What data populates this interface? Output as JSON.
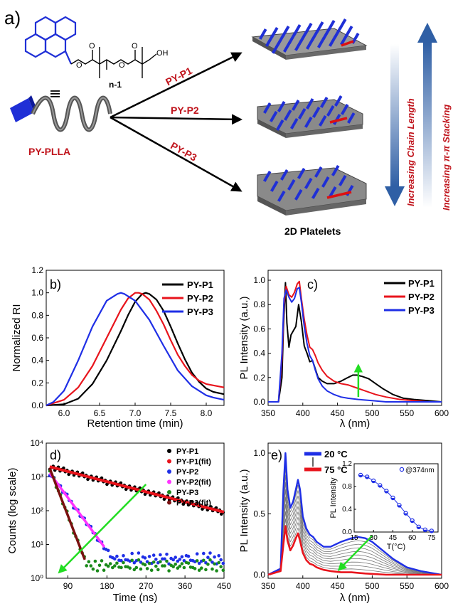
{
  "panel_a": {
    "label": "a)",
    "molecule_sub": "n-1",
    "equiv_mark": "|||",
    "polymer_name": "PY-PLLA",
    "routes": [
      "PY-P1",
      "PY-P2",
      "PY-P3"
    ],
    "caption": "2D Platelets",
    "arrow_down_label": "Increasing Chain Length",
    "arrow_up_label": "Increasing π-π Stacking",
    "colors": {
      "pyrene": "#1f2fd6",
      "accent_red": "#c0141c",
      "platelet": "#8a8a8a"
    }
  },
  "chart_data": [
    {
      "panel": "b)",
      "type": "line",
      "xlabel": "Retention time (min)",
      "ylabel": "Normalized RI",
      "xlim": [
        5.75,
        8.25
      ],
      "ylim": [
        0,
        1.2
      ],
      "xticks": [
        "6.0",
        "6.5",
        "7.0",
        "7.5",
        "8.0"
      ],
      "yticks": [
        "0.0",
        "0.2",
        "0.4",
        "0.6",
        "0.8",
        "1.0",
        "1.2"
      ],
      "legend": "top-right",
      "series": [
        {
          "name": "PY-P1",
          "color": "#000000",
          "x": [
            5.75,
            6.0,
            6.2,
            6.4,
            6.6,
            6.8,
            6.9,
            7.0,
            7.1,
            7.15,
            7.2,
            7.3,
            7.4,
            7.5,
            7.6,
            7.7,
            7.8,
            7.9,
            8.0,
            8.1,
            8.25
          ],
          "y": [
            0.0,
            0.01,
            0.06,
            0.19,
            0.4,
            0.66,
            0.8,
            0.92,
            0.99,
            1.0,
            0.99,
            0.94,
            0.84,
            0.7,
            0.55,
            0.41,
            0.29,
            0.21,
            0.15,
            0.12,
            0.1
          ]
        },
        {
          "name": "PY-P2",
          "color": "#e8141c",
          "x": [
            5.75,
            5.9,
            6.0,
            6.2,
            6.4,
            6.6,
            6.8,
            6.9,
            7.0,
            7.05,
            7.1,
            7.2,
            7.3,
            7.4,
            7.5,
            7.6,
            7.7,
            7.8,
            7.9,
            8.0,
            8.25
          ],
          "y": [
            0.0,
            0.03,
            0.05,
            0.16,
            0.35,
            0.6,
            0.85,
            0.95,
            1.0,
            1.0,
            0.99,
            0.94,
            0.84,
            0.72,
            0.58,
            0.45,
            0.35,
            0.27,
            0.22,
            0.19,
            0.16
          ]
        },
        {
          "name": "PY-P3",
          "color": "#1f2fe6",
          "x": [
            5.75,
            5.85,
            6.0,
            6.2,
            6.4,
            6.6,
            6.75,
            6.8,
            6.85,
            7.0,
            7.2,
            7.4,
            7.6,
            7.8,
            8.0,
            8.1,
            8.25
          ],
          "y": [
            0.0,
            0.03,
            0.13,
            0.4,
            0.7,
            0.93,
            0.99,
            1.0,
            0.99,
            0.93,
            0.76,
            0.53,
            0.31,
            0.17,
            0.09,
            0.07,
            0.05
          ]
        }
      ]
    },
    {
      "panel": "c)",
      "type": "line",
      "xlabel": "λ (nm)",
      "ylabel": "PL Intensity (a.u.)",
      "xlim": [
        350,
        600
      ],
      "ylim": [
        0,
        1.0
      ],
      "xticks": [
        "350",
        "400",
        "450",
        "500",
        "550",
        "600"
      ],
      "yticks": [
        "0.0",
        "0.2",
        "0.4",
        "0.6",
        "0.8",
        "1.0"
      ],
      "legend": "top-right",
      "annotation": "green arrow near 480 nm pointing up",
      "series": [
        {
          "name": "PY-P1",
          "color": "#000000",
          "x": [
            350,
            365,
            370,
            372,
            375,
            377,
            380,
            383,
            386,
            390,
            394,
            398,
            402,
            406,
            410,
            414,
            418,
            422,
            428,
            435,
            445,
            455,
            465,
            472,
            478,
            485,
            495,
            505,
            515,
            530,
            545,
            560,
            580,
            600
          ],
          "y": [
            0.0,
            0.0,
            0.2,
            0.6,
            0.98,
            0.65,
            0.45,
            0.55,
            0.58,
            0.62,
            0.8,
            0.66,
            0.46,
            0.4,
            0.33,
            0.34,
            0.27,
            0.2,
            0.17,
            0.15,
            0.15,
            0.17,
            0.2,
            0.22,
            0.22,
            0.21,
            0.19,
            0.15,
            0.11,
            0.06,
            0.03,
            0.02,
            0.01,
            0.0
          ]
        },
        {
          "name": "PY-P2",
          "color": "#e8141c",
          "x": [
            350,
            365,
            370,
            373,
            376,
            380,
            384,
            388,
            392,
            395,
            398,
            402,
            406,
            410,
            414,
            418,
            422,
            428,
            435,
            445,
            455,
            465,
            475,
            485,
            495,
            505,
            520,
            540,
            560,
            580,
            600
          ],
          "y": [
            0.0,
            0.0,
            0.35,
            0.8,
            0.95,
            0.88,
            0.86,
            0.9,
            0.97,
            0.99,
            0.85,
            0.68,
            0.55,
            0.45,
            0.43,
            0.38,
            0.32,
            0.26,
            0.21,
            0.17,
            0.15,
            0.14,
            0.12,
            0.1,
            0.08,
            0.06,
            0.04,
            0.02,
            0.01,
            0.0,
            0.0
          ]
        },
        {
          "name": "PY-P3",
          "color": "#1f2fe6",
          "x": [
            350,
            365,
            370,
            373,
            376,
            380,
            384,
            388,
            392,
            395,
            398,
            402,
            406,
            410,
            414,
            418,
            422,
            428,
            435,
            445,
            455,
            465,
            480,
            500,
            520,
            540,
            560,
            600
          ],
          "y": [
            0.0,
            0.0,
            0.4,
            0.85,
            0.92,
            0.86,
            0.82,
            0.85,
            0.93,
            0.94,
            0.82,
            0.62,
            0.48,
            0.38,
            0.34,
            0.26,
            0.19,
            0.13,
            0.09,
            0.06,
            0.04,
            0.03,
            0.02,
            0.01,
            0.0,
            0.0,
            0.0,
            0.0
          ]
        }
      ]
    },
    {
      "panel": "d)",
      "type": "scatter",
      "xlabel": "Time (ns)",
      "ylabel": "Counts (log scale)",
      "xlim": [
        40,
        450
      ],
      "ylim_log10": [
        0,
        4
      ],
      "y_scale": "log",
      "xticks": [
        "90",
        "180",
        "270",
        "360",
        "450"
      ],
      "yticks": [
        "10⁰",
        "10¹",
        "10²",
        "10³",
        "10⁴"
      ],
      "legend": "top-right",
      "annotation": "green arrow pointing down-left",
      "series": [
        {
          "name": "PY-P1",
          "color": "#000000",
          "role": "data",
          "tau": 130,
          "amp": 2000
        },
        {
          "name": "PY-P1(fit)",
          "color": "#e8141c",
          "role": "fit",
          "tau": 130,
          "amp": 2000
        },
        {
          "name": "PY-P2",
          "color": "#1f2fe6",
          "role": "data",
          "tau": 25,
          "amp": 1300
        },
        {
          "name": "PY-P2(fit)",
          "color": "#ff33ff",
          "role": "fit",
          "tau": 25,
          "amp": 1300
        },
        {
          "name": "PY-P3",
          "color": "#1a8a1a",
          "role": "data",
          "tau": 13,
          "amp": 1800
        },
        {
          "name": "PY-P3(fit)",
          "color": "#7a1010",
          "role": "fit",
          "tau": 13,
          "amp": 1800
        }
      ]
    },
    {
      "panel": "e)",
      "type": "line",
      "xlabel": "λ (nm)",
      "ylabel": "PL Intensity (a.u.)",
      "xlim": [
        350,
        600
      ],
      "ylim": [
        0,
        1.0
      ],
      "xticks": [
        "350",
        "400",
        "450",
        "500",
        "550",
        "600"
      ],
      "yticks": [
        "0.0",
        "0.5",
        "1.0"
      ],
      "legend_labels": [
        "20 °C",
        "75 °C"
      ],
      "annotation": "green arrow near 450 nm",
      "series": [
        {
          "name": "20 °C",
          "color": "#1f2fe6",
          "x": [
            350,
            368,
            372,
            375,
            378,
            382,
            386,
            390,
            393,
            396,
            400,
            405,
            410,
            415,
            420,
            430,
            440,
            455,
            470,
            480,
            490,
            500,
            515,
            530,
            550,
            570,
            600
          ],
          "y": [
            0.0,
            0.05,
            0.7,
            1.0,
            0.7,
            0.55,
            0.6,
            0.7,
            0.78,
            0.7,
            0.48,
            0.38,
            0.33,
            0.31,
            0.27,
            0.23,
            0.23,
            0.27,
            0.3,
            0.31,
            0.3,
            0.27,
            0.2,
            0.13,
            0.06,
            0.03,
            0.0
          ]
        },
        {
          "name": "75 °C",
          "color": "#e8141c",
          "x": [
            350,
            368,
            372,
            375,
            378,
            382,
            386,
            390,
            393,
            396,
            400,
            405,
            410,
            415,
            420,
            430,
            440,
            455,
            470,
            490,
            520,
            560,
            600
          ],
          "y": [
            0.0,
            0.03,
            0.25,
            0.4,
            0.28,
            0.2,
            0.24,
            0.3,
            0.34,
            0.28,
            0.18,
            0.12,
            0.09,
            0.08,
            0.06,
            0.04,
            0.03,
            0.02,
            0.02,
            0.01,
            0.0,
            0.0,
            0.0
          ]
        }
      ],
      "inset": {
        "type": "line",
        "xlabel": "T(°C)",
        "ylabel": "PL Intensity",
        "legend": "@374nm",
        "xlim": [
          15,
          80
        ],
        "ylim": [
          0,
          1.2
        ],
        "xticks": [
          "15",
          "30",
          "45",
          "60",
          "75"
        ],
        "yticks": [
          "0.0",
          "0.4",
          "0.8",
          "1.2"
        ],
        "x": [
          20,
          25,
          30,
          35,
          40,
          45,
          50,
          55,
          60,
          65,
          70,
          75
        ],
        "y": [
          1.0,
          0.97,
          0.9,
          0.82,
          0.72,
          0.6,
          0.47,
          0.33,
          0.2,
          0.09,
          0.04,
          0.02
        ]
      }
    }
  ]
}
